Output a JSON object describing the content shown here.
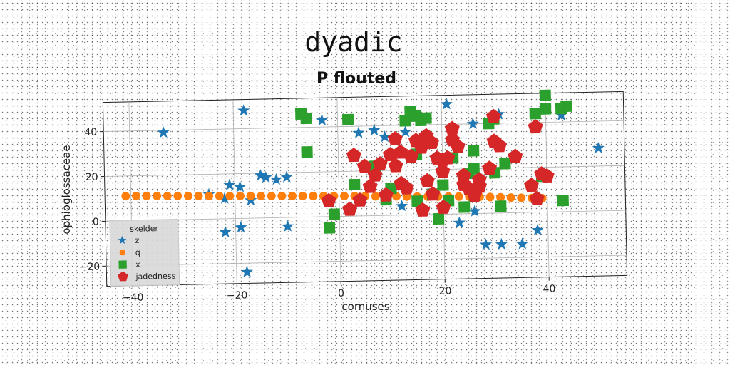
{
  "chart_data": {
    "type": "scatter",
    "title": "dyadic",
    "subtitle": "P flouted",
    "xlabel": "cornuses",
    "ylabel": "ophioglossaceae",
    "xlim": [
      -45,
      55
    ],
    "ylim": [
      -29,
      53
    ],
    "xticks": [
      -40,
      -20,
      0,
      20,
      40
    ],
    "yticks": [
      -20,
      0,
      20,
      40
    ],
    "grid": true,
    "legend": {
      "title": "skelder",
      "placement": "lower-left"
    },
    "series": [
      {
        "name": "z",
        "marker": "star",
        "color": "#1f77b4",
        "points": [
          [
            -33.5,
            39
          ],
          [
            -18,
            48
          ],
          [
            -3,
            43
          ],
          [
            4,
            37
          ],
          [
            7,
            38
          ],
          [
            9,
            35
          ],
          [
            13,
            37
          ],
          [
            21,
            49
          ],
          [
            26,
            40
          ],
          [
            31,
            44
          ],
          [
            43,
            43
          ],
          [
            50,
            28
          ],
          [
            -15,
            19
          ],
          [
            -14,
            18
          ],
          [
            -12,
            17
          ],
          [
            -10,
            18
          ],
          [
            -21,
            15
          ],
          [
            -19,
            14
          ],
          [
            -25,
            11
          ],
          [
            -22,
            9
          ],
          [
            -17,
            8
          ],
          [
            -22,
            -6
          ],
          [
            -19,
            -4
          ],
          [
            -10,
            -4
          ],
          [
            -18,
            -24
          ],
          [
            12,
            4
          ],
          [
            23,
            -4
          ],
          [
            26,
            1
          ],
          [
            28,
            -14
          ],
          [
            31,
            -14
          ],
          [
            35,
            -14
          ],
          [
            38,
            -8
          ]
        ]
      },
      {
        "name": "q",
        "marker": "circle",
        "color": "#ff7f0e",
        "points": [
          [
            -41,
            11
          ],
          [
            -39,
            11
          ],
          [
            -37,
            10.9
          ],
          [
            -35,
            10.8
          ],
          [
            -33,
            10.7
          ],
          [
            -31,
            10.6
          ],
          [
            -29,
            10.5
          ],
          [
            -27,
            10.4
          ],
          [
            -25,
            10.3
          ],
          [
            -23,
            10.2
          ],
          [
            -21,
            10.1
          ],
          [
            -19,
            10
          ],
          [
            -17,
            9.9
          ],
          [
            -15,
            9.8
          ],
          [
            -13,
            9.7
          ],
          [
            -11,
            9.6
          ],
          [
            -9,
            9.5
          ],
          [
            -7,
            9.4
          ],
          [
            -5,
            9.3
          ],
          [
            -3,
            9.2
          ],
          [
            -1,
            9.1
          ],
          [
            1,
            9
          ],
          [
            3,
            8.9
          ],
          [
            5,
            8.8
          ],
          [
            7,
            8.6
          ],
          [
            9,
            8.5
          ],
          [
            11,
            8.4
          ],
          [
            13,
            8.2
          ],
          [
            15,
            8.1
          ],
          [
            17,
            8
          ],
          [
            19,
            7.9
          ],
          [
            21,
            7.8
          ],
          [
            23,
            7.7
          ],
          [
            25,
            7.6
          ],
          [
            27,
            7.4
          ],
          [
            29,
            7.2
          ],
          [
            31,
            7
          ],
          [
            33,
            6.8
          ],
          [
            35,
            6.6
          ],
          [
            37,
            6.4
          ],
          [
            39,
            6.2
          ]
        ]
      },
      {
        "name": "x",
        "marker": "square",
        "color": "#2ca02c",
        "points": [
          [
            -7,
            46
          ],
          [
            -6,
            44
          ],
          [
            -6,
            29
          ],
          [
            2,
            43
          ],
          [
            14,
            46
          ],
          [
            15,
            44
          ],
          [
            16,
            42
          ],
          [
            17,
            43
          ],
          [
            13,
            42
          ],
          [
            26,
            28
          ],
          [
            29,
            40
          ],
          [
            30,
            42
          ],
          [
            38,
            44
          ],
          [
            40,
            46
          ],
          [
            40,
            52
          ],
          [
            44,
            47
          ],
          [
            43,
            46
          ],
          [
            7,
            22
          ],
          [
            15,
            27
          ],
          [
            16,
            33
          ],
          [
            22,
            25
          ],
          [
            26,
            20
          ],
          [
            30,
            18
          ],
          [
            32,
            22
          ],
          [
            39,
            16
          ],
          [
            25,
            18
          ],
          [
            20,
            13
          ],
          [
            10,
            12
          ],
          [
            9,
            7
          ],
          [
            15,
            6
          ],
          [
            18,
            9
          ],
          [
            21,
            6
          ],
          [
            24,
            3
          ],
          [
            26,
            8
          ],
          [
            31,
            3
          ],
          [
            43,
            5
          ],
          [
            -1,
            1
          ],
          [
            -2,
            -5
          ],
          [
            3,
            14
          ],
          [
            19,
            -2
          ]
        ]
      },
      {
        "name": "jadedness",
        "marker": "pentagon",
        "color": "#d62728",
        "points": [
          [
            3,
            27
          ],
          [
            5,
            22
          ],
          [
            7,
            18
          ],
          [
            8,
            23
          ],
          [
            10,
            27
          ],
          [
            11,
            34
          ],
          [
            11,
            22
          ],
          [
            12,
            28
          ],
          [
            12,
            14
          ],
          [
            13,
            12
          ],
          [
            14,
            26
          ],
          [
            15,
            33
          ],
          [
            16,
            30
          ],
          [
            17,
            35
          ],
          [
            18,
            32
          ],
          [
            18,
            9
          ],
          [
            17,
            15
          ],
          [
            19,
            25
          ],
          [
            20,
            19
          ],
          [
            20,
            24
          ],
          [
            21,
            25
          ],
          [
            22,
            38
          ],
          [
            22,
            33
          ],
          [
            23,
            30
          ],
          [
            24,
            17
          ],
          [
            24,
            13
          ],
          [
            25,
            11
          ],
          [
            26,
            8
          ],
          [
            27,
            12
          ],
          [
            27,
            15
          ],
          [
            29,
            20
          ],
          [
            30,
            32
          ],
          [
            31,
            30
          ],
          [
            30,
            43
          ],
          [
            34,
            25
          ],
          [
            37,
            12
          ],
          [
            38,
            6
          ],
          [
            38,
            38
          ],
          [
            39,
            17
          ],
          [
            40,
            16
          ],
          [
            -2,
            7
          ],
          [
            2,
            3
          ],
          [
            4,
            7
          ],
          [
            6,
            13
          ],
          [
            9,
            9
          ],
          [
            16,
            2
          ],
          [
            20,
            3
          ]
        ]
      }
    ]
  }
}
